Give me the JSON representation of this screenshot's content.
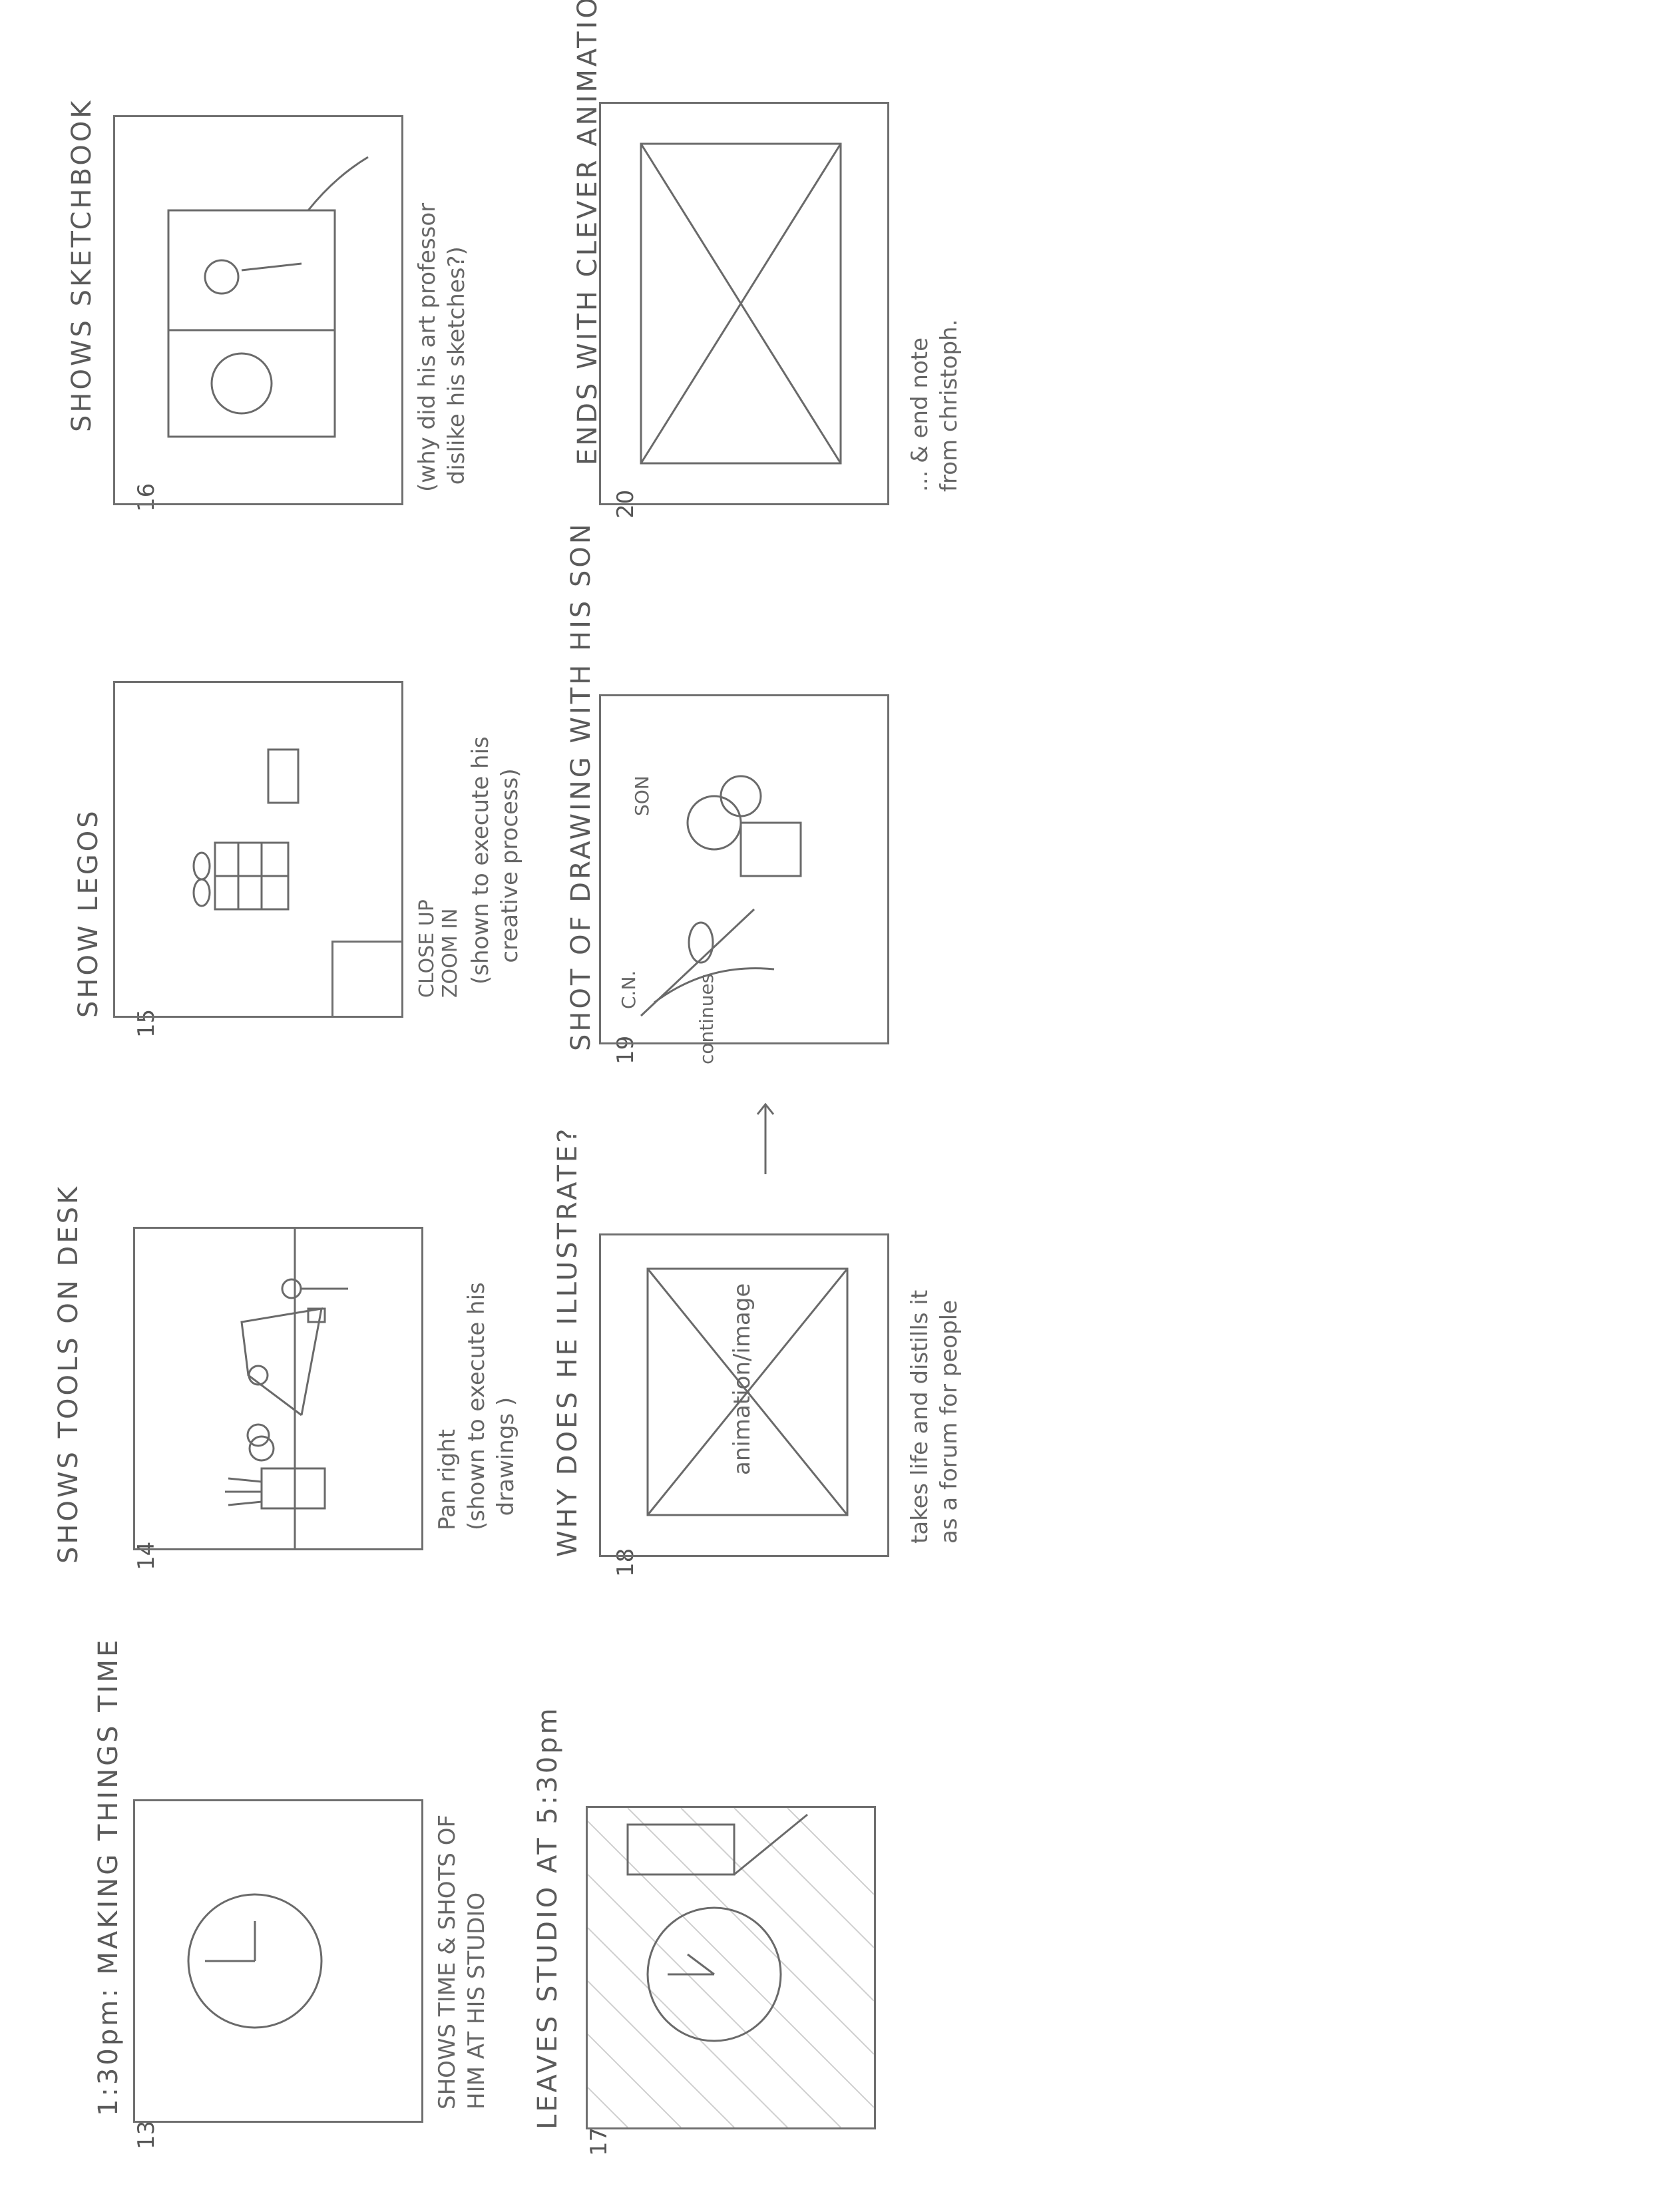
{
  "sheet": {
    "panels": [
      {
        "num": "13",
        "title": "1:30pm: MAKING THINGS TIME",
        "notes": "SHOWS TIME & SHOTS OF\nHIM AT HIS STUDIO"
      },
      {
        "num": "14",
        "title": "SHOWS TOOLS ON DESK",
        "notes": "Pan right\n(shown to execute his\n  drawings )"
      },
      {
        "num": "15",
        "title": "SHOW LEGOS",
        "notes": "(shown to execute his\n   creative process)",
        "inner_label_1": "CLOSE UP",
        "inner_label_2": "ZOOM IN"
      },
      {
        "num": "16",
        "title": "SHOWS SKETCHBOOK",
        "notes": "(why did his art professor\n dislike his sketches?)"
      },
      {
        "num": "17",
        "title": "LEAVES STUDIO AT 5:30pm",
        "notes": ""
      },
      {
        "num": "18",
        "title": "WHY DOES HE ILLUSTRATE?",
        "notes": "takes life and distills it\nas a forum for people",
        "inner_label_1": "animation/image",
        "side_label": "continues"
      },
      {
        "num": "19",
        "title": "SHOT OF DRAWING WITH HIS SON",
        "notes": "",
        "label_cn": "C.N.",
        "label_son": "SON"
      },
      {
        "num": "20",
        "title": "ENDS WITH CLEVER ANIMATION",
        "notes": "... & end note\nfrom christoph."
      }
    ]
  }
}
